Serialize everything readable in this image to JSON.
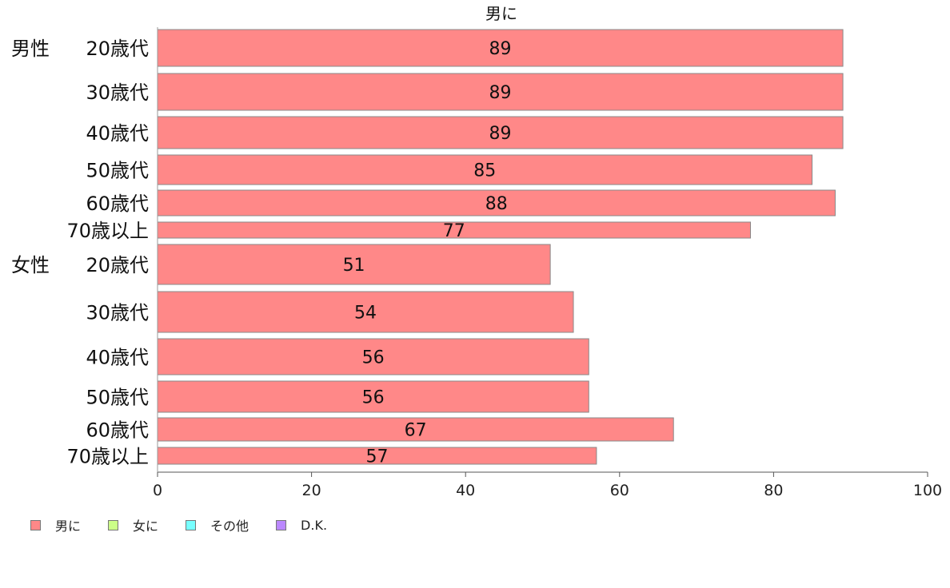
{
  "chart_data": {
    "type": "bar",
    "orientation": "horizontal",
    "title": "",
    "series": [
      {
        "name": "男に",
        "color": "#ff8888",
        "values": [
          89,
          89,
          89,
          85,
          88,
          77,
          51,
          54,
          56,
          56,
          67,
          57
        ]
      }
    ],
    "categories": [
      {
        "group": "男性",
        "label": "20歳代"
      },
      {
        "group": "",
        "label": "30歳代"
      },
      {
        "group": "",
        "label": "40歳代"
      },
      {
        "group": "",
        "label": "50歳代"
      },
      {
        "group": "",
        "label": "60歳代"
      },
      {
        "group": "",
        "label": "70歳以上"
      },
      {
        "group": "女性",
        "label": "20歳代"
      },
      {
        "group": "",
        "label": "30歳代"
      },
      {
        "group": "",
        "label": "40歳代"
      },
      {
        "group": "",
        "label": "50歳代"
      },
      {
        "group": "",
        "label": "60歳代"
      },
      {
        "group": "",
        "label": "70歳以上"
      }
    ],
    "xlim": [
      0,
      100
    ],
    "xticks": [
      0,
      20,
      40,
      60,
      80,
      100
    ],
    "grid": false,
    "legend_position": "bottom-left",
    "legend": [
      {
        "name": "男に",
        "color": "#ff8888"
      },
      {
        "name": "女に",
        "color": "#ccff88"
      },
      {
        "name": "その他",
        "color": "#77ffff"
      },
      {
        "name": "D.K.",
        "color": "#bb88ff"
      }
    ]
  },
  "header_label": "男に"
}
